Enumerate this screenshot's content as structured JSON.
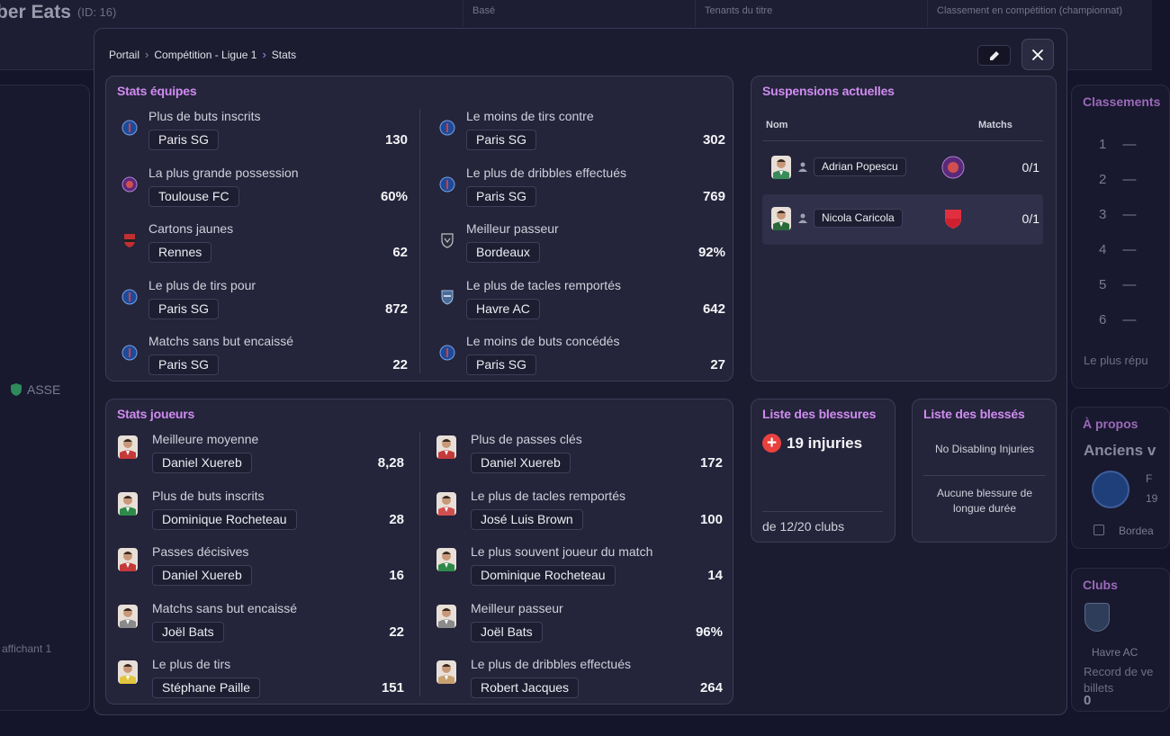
{
  "background": {
    "title": "ber Eats",
    "id_label": "(ID: 16)",
    "columns": [
      "Basé",
      "Tenants du titre",
      "Classement en compétition (championnat)"
    ],
    "left_club": "ASSE",
    "left_footer": "affichant 1",
    "rankings": {
      "title": "Classements",
      "ranks": [
        "1",
        "2",
        "3",
        "4",
        "5",
        "6"
      ],
      "footer": "Le plus répu"
    },
    "about": {
      "title": "À propos",
      "subtitle": "Anciens v",
      "detail_a": "F",
      "detail_b": "19",
      "club": "Bordea"
    },
    "clubs": {
      "title": "Clubs",
      "club_name": "Havre AC",
      "record": "Record de ve billets",
      "record_value": "0"
    }
  },
  "breadcrumb": [
    "Portail",
    "Compétition - Ligue 1",
    "Stats"
  ],
  "team_stats": {
    "title": "Stats équipes",
    "left": [
      {
        "label": "Plus de buts inscrits",
        "team": "Paris SG",
        "value": "130",
        "logo": "psg"
      },
      {
        "label": "La plus grande possession",
        "team": "Toulouse FC",
        "value": "60%",
        "logo": "tfc"
      },
      {
        "label": "Cartons jaunes",
        "team": "Rennes",
        "value": "62",
        "logo": "rennes"
      },
      {
        "label": "Le plus de tirs pour",
        "team": "Paris SG",
        "value": "872",
        "logo": "psg"
      },
      {
        "label": "Matchs sans but encaissé",
        "team": "Paris SG",
        "value": "22",
        "logo": "psg"
      }
    ],
    "right": [
      {
        "label": "Le moins de tirs contre",
        "team": "Paris SG",
        "value": "302",
        "logo": "psg"
      },
      {
        "label": "Le plus de dribbles effectués",
        "team": "Paris SG",
        "value": "769",
        "logo": "psg"
      },
      {
        "label": "Meilleur passeur",
        "team": "Bordeaux",
        "value": "92%",
        "logo": "bordeaux"
      },
      {
        "label": "Le plus de tacles remportés",
        "team": "Havre AC",
        "value": "642",
        "logo": "havre"
      },
      {
        "label": "Le moins de buts concédés",
        "team": "Paris SG",
        "value": "27",
        "logo": "psg"
      }
    ]
  },
  "player_stats": {
    "title": "Stats joueurs",
    "left": [
      {
        "label": "Meilleure moyenne",
        "player": "Daniel Xuereb",
        "value": "8,28",
        "kit": "#c43a3a"
      },
      {
        "label": "Plus de buts inscrits",
        "player": "Dominique Rocheteau",
        "value": "28",
        "kit": "#2e8a4a"
      },
      {
        "label": "Passes décisives",
        "player": "Daniel Xuereb",
        "value": "16",
        "kit": "#c43a3a"
      },
      {
        "label": "Matchs sans but encaissé",
        "player": "Joël Bats",
        "value": "22",
        "kit": "#8a8a8a"
      },
      {
        "label": "Le plus de tirs",
        "player": "Stéphane Paille",
        "value": "151",
        "kit": "#e0c640"
      }
    ],
    "right": [
      {
        "label": "Plus de passes clés",
        "player": "Daniel Xuereb",
        "value": "172",
        "kit": "#c43a3a"
      },
      {
        "label": "Le plus de tacles remportés",
        "player": "José Luis Brown",
        "value": "100",
        "kit": "#d05050"
      },
      {
        "label": "Le plus souvent joueur du match",
        "player": "Dominique Rocheteau",
        "value": "14",
        "kit": "#2e8a4a"
      },
      {
        "label": "Meilleur passeur",
        "player": "Joël Bats",
        "value": "96%",
        "kit": "#8a8a8a"
      },
      {
        "label": "Le plus de dribbles effectués",
        "player": "Robert Jacques",
        "value": "264",
        "kit": "#c8a070"
      }
    ]
  },
  "suspensions": {
    "title": "Suspensions actuelles",
    "col_name": "Nom",
    "col_matches": "Matchs",
    "rows": [
      {
        "player": "Adrian Popescu",
        "matches": "0/1",
        "club": "tfc",
        "kit": "#3a8a5a"
      },
      {
        "player": "Nicola Caricola",
        "matches": "0/1",
        "club": "monaco",
        "kit": "#2a6a3a"
      }
    ]
  },
  "injuries": {
    "title": "Liste des blessures",
    "count_text": "19 injuries",
    "clubs_text": "de 12/20 clubs"
  },
  "injured": {
    "title": "Liste des blessés",
    "disabling": "No Disabling Injuries",
    "long_term": "Aucune blessure de longue durée"
  }
}
